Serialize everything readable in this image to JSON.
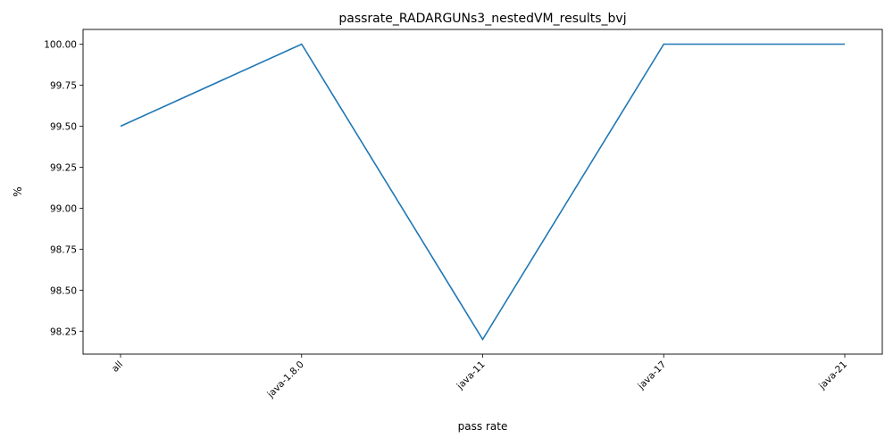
{
  "chart_data": {
    "type": "line",
    "title": "passrate_RADARGUNs3_nestedVM_results_bvj",
    "xlabel": "pass rate",
    "ylabel": "%",
    "categories": [
      "all",
      "java-1.8.0",
      "java-11",
      "java-17",
      "java-21"
    ],
    "series": [
      {
        "values": [
          99.5,
          100.0,
          98.2,
          100.0,
          100.0
        ]
      }
    ],
    "ylim": [
      98.11,
      100.09
    ],
    "yticks": [
      "98.25",
      "98.50",
      "98.75",
      "99.00",
      "99.25",
      "99.50",
      "99.75",
      "100.00"
    ],
    "grid": false,
    "line_color": "#1f77b4"
  }
}
